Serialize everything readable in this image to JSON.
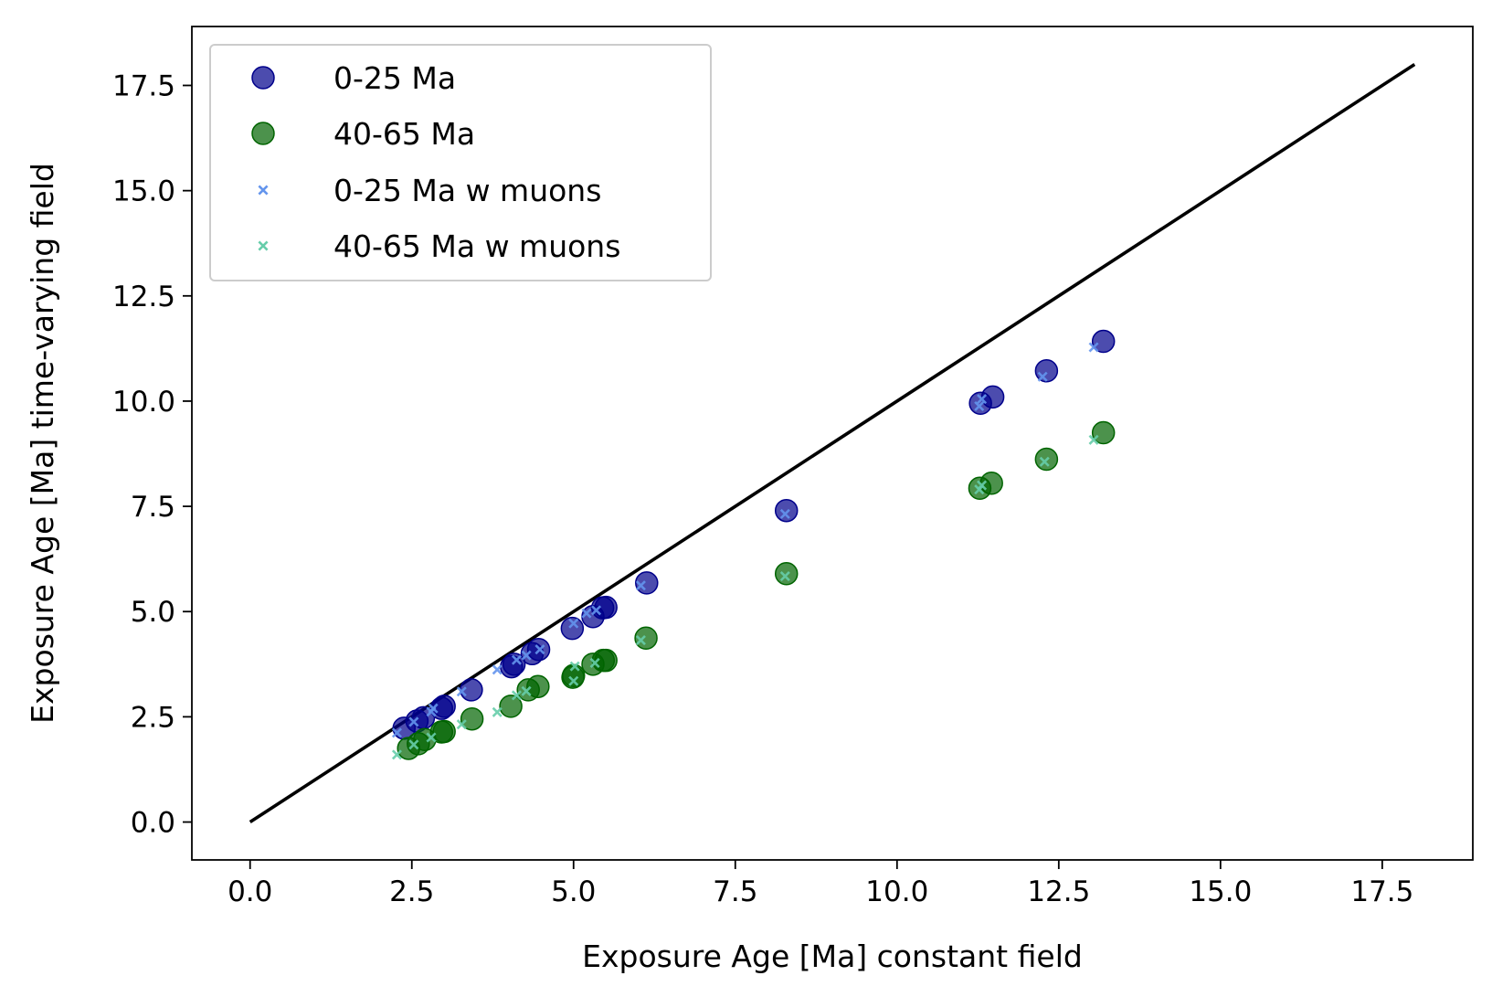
{
  "chart_data": {
    "type": "scatter",
    "xlabel": "Exposure Age [Ma] constant field",
    "ylabel": "Exposure Age [Ma] time-varying field",
    "xlim": [
      -0.9,
      18.9
    ],
    "ylim": [
      -0.9,
      18.9
    ],
    "xticks": [
      "0.0",
      "2.5",
      "5.0",
      "7.5",
      "10.0",
      "12.5",
      "15.0",
      "17.5"
    ],
    "yticks": [
      "0.0",
      "2.5",
      "5.0",
      "7.5",
      "10.0",
      "12.5",
      "15.0",
      "17.5"
    ],
    "grid": false,
    "legend_position": "top-left",
    "reference_line": {
      "x": [
        0,
        18
      ],
      "y": [
        0,
        18
      ],
      "color": "#000000"
    },
    "series": [
      {
        "name": "0-25 Ma",
        "marker": "circle",
        "color": "#00008b",
        "points": [
          [
            2.38,
            2.23
          ],
          [
            2.58,
            2.4
          ],
          [
            2.68,
            2.48
          ],
          [
            2.96,
            2.7
          ],
          [
            3.0,
            2.75
          ],
          [
            3.42,
            3.14
          ],
          [
            4.04,
            3.69
          ],
          [
            4.08,
            3.75
          ],
          [
            4.36,
            4.0
          ],
          [
            4.46,
            4.1
          ],
          [
            4.98,
            4.6
          ],
          [
            5.3,
            4.88
          ],
          [
            5.45,
            5.09
          ],
          [
            5.5,
            5.1
          ],
          [
            6.13,
            5.68
          ],
          [
            8.29,
            7.4
          ],
          [
            11.29,
            9.95
          ],
          [
            11.48,
            10.1
          ],
          [
            12.31,
            10.72
          ],
          [
            13.19,
            11.42
          ]
        ]
      },
      {
        "name": "40-65 Ma",
        "marker": "circle",
        "color": "#006400",
        "points": [
          [
            2.45,
            1.75
          ],
          [
            2.6,
            1.86
          ],
          [
            2.7,
            1.96
          ],
          [
            2.96,
            2.14
          ],
          [
            3.0,
            2.15
          ],
          [
            3.43,
            2.45
          ],
          [
            4.03,
            2.75
          ],
          [
            4.3,
            3.14
          ],
          [
            4.45,
            3.22
          ],
          [
            4.99,
            3.44
          ],
          [
            5.0,
            3.48
          ],
          [
            5.3,
            3.75
          ],
          [
            5.46,
            3.84
          ],
          [
            5.5,
            3.84
          ],
          [
            6.12,
            4.37
          ],
          [
            8.29,
            5.9
          ],
          [
            11.28,
            7.93
          ],
          [
            11.46,
            8.05
          ],
          [
            12.31,
            8.62
          ],
          [
            13.19,
            9.25
          ]
        ]
      },
      {
        "name": "0-25 Ma w muons",
        "marker": "x",
        "color": "#6495ed",
        "points": [
          [
            2.27,
            2.12
          ],
          [
            2.53,
            2.38
          ],
          [
            2.8,
            2.62
          ],
          [
            2.83,
            2.7
          ],
          [
            3.27,
            3.1
          ],
          [
            3.82,
            3.62
          ],
          [
            4.12,
            3.85
          ],
          [
            4.27,
            3.96
          ],
          [
            4.48,
            4.1
          ],
          [
            5.0,
            4.72
          ],
          [
            5.2,
            4.96
          ],
          [
            5.35,
            5.03
          ],
          [
            6.04,
            5.62
          ],
          [
            8.27,
            7.32
          ],
          [
            11.27,
            9.88
          ],
          [
            11.31,
            10.05
          ],
          [
            12.25,
            10.58
          ],
          [
            13.04,
            11.28
          ]
        ]
      },
      {
        "name": "40-65 Ma w muons",
        "marker": "x",
        "color": "#66cdaa",
        "points": [
          [
            2.27,
            1.6
          ],
          [
            2.53,
            1.84
          ],
          [
            2.8,
            2.01
          ],
          [
            3.27,
            2.32
          ],
          [
            3.82,
            2.61
          ],
          [
            4.12,
            3.01
          ],
          [
            4.27,
            3.11
          ],
          [
            5.0,
            3.35
          ],
          [
            5.02,
            3.7
          ],
          [
            5.33,
            3.78
          ],
          [
            6.04,
            4.32
          ],
          [
            8.27,
            5.84
          ],
          [
            11.27,
            7.9
          ],
          [
            11.31,
            8.0
          ],
          [
            12.28,
            8.56
          ],
          [
            13.04,
            9.08
          ]
        ]
      }
    ]
  }
}
